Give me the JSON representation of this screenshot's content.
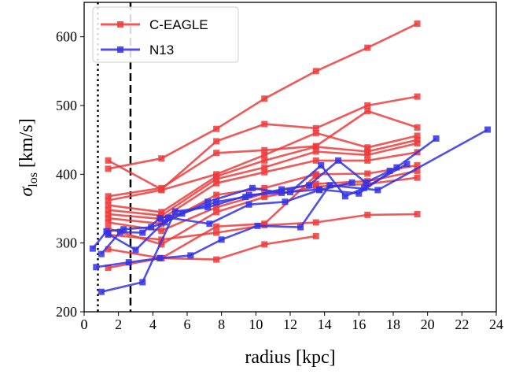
{
  "chart_data": {
    "type": "line",
    "xlabel": "radius [kpc]",
    "ylabel": {
      "main": "σ",
      "sub": "los",
      "unit": " [km/s]"
    },
    "xlim": [
      0,
      24
    ],
    "ylim": [
      200,
      650
    ],
    "xticks": [
      0,
      2,
      4,
      6,
      8,
      10,
      12,
      14,
      16,
      18,
      20,
      22,
      24
    ],
    "yticks": [
      200,
      300,
      400,
      500,
      600
    ],
    "vlines": [
      {
        "x": 0.8,
        "style": "dotted",
        "color": "#000000"
      },
      {
        "x": 2.7,
        "style": "dashed",
        "color": "#000000"
      }
    ],
    "legend": {
      "position": "top-left",
      "entries": [
        {
          "label": "C-EAGLE",
          "color": "#ee3b3b"
        },
        {
          "label": "N13",
          "color": "#3232e6"
        }
      ]
    },
    "groups": [
      {
        "label": "C-EAGLE",
        "color": "#ee3b3b",
        "series": [
          {
            "x": [
              1.4,
              4.5,
              7.7,
              10.5,
              13.5,
              16.5,
              19.4
            ],
            "y": [
              408,
              423,
              466,
              510,
              550,
              584,
              619
            ]
          },
          {
            "x": [
              1.4,
              4.5,
              7.7,
              10.5,
              13.5,
              16.5,
              19.4
            ],
            "y": [
              420,
              378,
              448,
              473,
              467,
              500,
              513
            ]
          },
          {
            "x": [
              1.4,
              4.5,
              7.7,
              10.5,
              13.5,
              16.5,
              19.4
            ],
            "y": [
              368,
              380,
              431,
              435,
              441,
              492,
              468
            ]
          },
          {
            "x": [
              1.4,
              4.5,
              7.7,
              10.5,
              13.5,
              16.5,
              19.4
            ],
            "y": [
              362,
              377,
              400,
              428,
              460,
              439,
              456
            ]
          },
          {
            "x": [
              1.4,
              4.5,
              7.7,
              10.5,
              13.5,
              16.5,
              19.4
            ],
            "y": [
              355,
              345,
              397,
              420,
              440,
              433,
              450
            ]
          },
          {
            "x": [
              1.4,
              4.5,
              7.7,
              10.5,
              13.5,
              16.5,
              19.4
            ],
            "y": [
              348,
              340,
              393,
              410,
              433,
              428,
              445
            ]
          },
          {
            "x": [
              1.4,
              4.5,
              7.7,
              10.5,
              13.5,
              16.5,
              19.4
            ],
            "y": [
              342,
              335,
              387,
              403,
              420,
              420,
              432
            ]
          },
          {
            "x": [
              1.4,
              4.5,
              7.7,
              10.5,
              13.5,
              16.5,
              19.4
            ],
            "y": [
              336,
              328,
              370,
              380,
              400,
              401,
              413
            ]
          },
          {
            "x": [
              1.4,
              4.5,
              7.7,
              10.5,
              13.5,
              16.5,
              19.4
            ],
            "y": [
              330,
              318,
              352,
              372,
              386,
              390,
              405
            ]
          },
          {
            "x": [
              1.4,
              4.5,
              7.7,
              10.5,
              13.5,
              16.5,
              19.4
            ],
            "y": [
              321,
              298,
              345,
              367,
              382,
              386,
              395
            ]
          },
          {
            "x": [
              1.4,
              4.5,
              7.7,
              10.5,
              13.5,
              16.5,
              19.4
            ],
            "y": [
              312,
              305,
              315,
              326,
              330,
              341,
              342
            ]
          },
          {
            "x": [
              1.4,
              4.5,
              7.7,
              10.5,
              13.5
            ],
            "y": [
              291,
              278,
              276,
              298,
              310
            ]
          },
          {
            "x": [
              1.4,
              4.5,
              7.7,
              10.5,
              13.5
            ],
            "y": [
              264,
              278,
              324,
              328,
              398
            ]
          }
        ]
      },
      {
        "label": "N13",
        "color": "#3232e6",
        "series": [
          {
            "x": [
              0.5,
              1.3,
              2.3,
              3.9,
              4.7,
              7.2,
              9.8,
              11.5,
              13.7,
              16.0,
              18.2,
              20.5
            ],
            "y": [
              292,
              317,
              320,
              323,
              330,
              360,
              380,
              373,
              378,
              372,
              410,
              452
            ]
          },
          {
            "x": [
              1.0,
              2.1,
              3.4,
              4.4,
              5.7,
              7.7,
              9.4,
              11.5,
              13.1,
              14.8,
              16.4,
              17.8
            ],
            "y": [
              284,
              316,
              315,
              336,
              343,
              360,
              367,
              378,
              384,
              420,
              388,
              405
            ]
          },
          {
            "x": [
              0.7,
              2.6,
              4.4,
              6.2,
              8.0,
              10.1,
              12.6,
              14.3,
              17.1,
              23.5
            ],
            "y": [
              265,
              272,
              278,
              282,
              305,
              325,
              323,
              384,
              377,
              465
            ]
          },
          {
            "x": [
              1.0,
              3.4,
              5.3,
              7.2,
              9.6,
              12.0,
              13.8,
              15.2,
              16.3,
              18.8
            ],
            "y": [
              229,
              243,
              346,
              352,
              370,
              374,
              413,
              368,
              380,
              415
            ]
          },
          {
            "x": [
              1.4,
              3.0,
              4.9,
              7.3,
              9.6,
              11.7,
              13.7,
              15.6
            ],
            "y": [
              313,
              290,
              337,
              328,
              356,
              360,
              377,
              388
            ]
          }
        ]
      }
    ]
  }
}
